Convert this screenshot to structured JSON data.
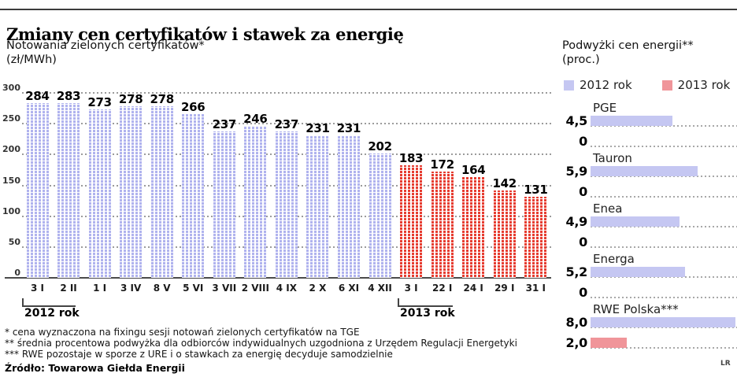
{
  "header": {
    "title": "Zmiany cen certyfikatów i stawek za energię"
  },
  "left_chart": {
    "title": "Notowania zielonych certyfikatów*",
    "unit": "(zł/MWh)",
    "group_2012_label": "2012 rok",
    "group_2013_label": "2013 rok"
  },
  "right_chart": {
    "title": "Podwyżki cen energii**",
    "unit": "(proc.)",
    "legend": [
      {
        "label": "2012 rok",
        "color": "#c5c7f2"
      },
      {
        "label": "2013 rok",
        "color": "#f0959a"
      }
    ]
  },
  "footnotes": [
    "* cena wyznaczona na fixingu sesji notowań zielonych certyfikatów na TGE",
    "** średnia procentowa podwyżka dla odbiorców indywidualnych uzgodniona z Urzędem Regulacji Energetyki",
    "*** RWE pozostaje w sporze z URE i o stawkach za energię decyduje samodzielnie"
  ],
  "source": "Źródło: Towarowa Giełda Energii",
  "credit": "LR",
  "colors": {
    "bar_2012_pattern": "#b0b3ee",
    "bar_2013_pattern": "#e63c30",
    "bar_2012_solid": "#c5c7f2",
    "bar_2013_solid": "#f0959a",
    "grid": "#9b9b9b",
    "axis": "#4a4a4a"
  },
  "chart_data": [
    {
      "type": "bar",
      "title": "Notowania zielonych certyfikatów*",
      "ylabel": "zł/MWh",
      "ylim": [
        0,
        300
      ],
      "yticks": [
        300,
        250,
        200,
        150,
        100,
        50,
        0
      ],
      "grid": "dotted-horizontal",
      "series": [
        {
          "name": "2012 rok",
          "color": "#b0b3ee",
          "x": [
            "3 I",
            "2 II",
            "1 I",
            "3 IV",
            "8 V",
            "5 VI",
            "3 VII",
            "2 VIII",
            "4 IX",
            "2 X",
            "6 XI",
            "4 XII"
          ],
          "values": [
            284,
            283,
            273,
            278,
            278,
            266,
            237,
            246,
            237,
            231,
            231,
            202
          ]
        },
        {
          "name": "2013 rok",
          "color": "#e63c30",
          "x": [
            "3 I",
            "22 I",
            "24 I",
            "29 I",
            "31 I"
          ],
          "values": [
            183,
            172,
            164,
            142,
            131
          ]
        }
      ]
    },
    {
      "type": "bar",
      "orientation": "horizontal",
      "title": "Podwyżki cen energii**",
      "unit": "proc.",
      "legend_position": "top",
      "categories": [
        "PGE",
        "Tauron",
        "Enea",
        "Energa",
        "RWE Polska***"
      ],
      "series": [
        {
          "name": "2012 rok",
          "color": "#c5c7f2",
          "values": [
            4.5,
            5.9,
            4.9,
            5.2,
            8.0
          ],
          "labels": [
            "4,5",
            "5,9",
            "4,9",
            "5,2",
            "8,0"
          ]
        },
        {
          "name": "2013 rok",
          "color": "#f0959a",
          "values": [
            0,
            0,
            0,
            0,
            2.0
          ],
          "labels": [
            "0",
            "0",
            "0",
            "0",
            "2,0"
          ]
        }
      ]
    }
  ]
}
